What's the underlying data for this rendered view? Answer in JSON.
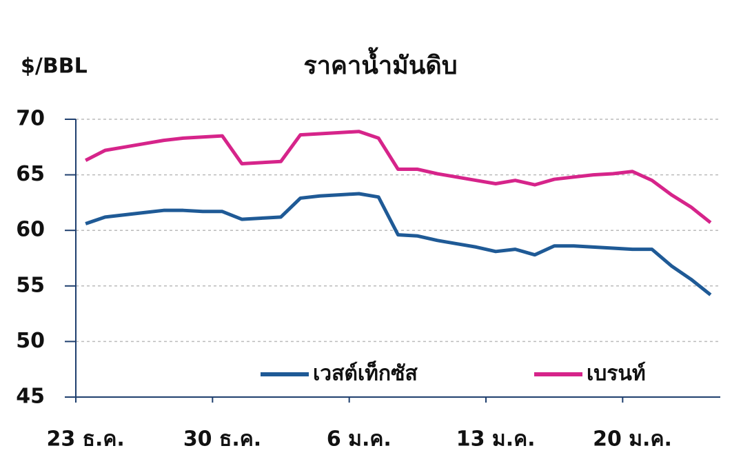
{
  "chart_data": {
    "type": "line",
    "title": "ราคาน้ำมันดิบ",
    "y_label": "$/BBL",
    "categories": [
      "23 ธ.ค.",
      null,
      null,
      null,
      null,
      null,
      null,
      "30 ธ.ค.",
      null,
      null,
      null,
      null,
      null,
      null,
      "6 ม.ค.",
      null,
      null,
      null,
      null,
      null,
      null,
      "13 ม.ค.",
      null,
      null,
      null,
      null,
      null,
      null,
      "20 ม.ค.",
      null,
      null,
      null,
      null
    ],
    "series": [
      {
        "name": "เวสต์เท็กซัส",
        "color": "#1f5a96",
        "values": [
          60.6,
          61.2,
          61.4,
          61.6,
          61.8,
          61.8,
          61.7,
          61.7,
          61.0,
          61.1,
          61.2,
          62.9,
          63.1,
          63.2,
          63.3,
          63.0,
          59.6,
          59.5,
          59.1,
          58.8,
          58.5,
          58.1,
          58.3,
          57.8,
          58.6,
          58.6,
          58.5,
          58.4,
          58.3,
          58.3,
          56.8,
          55.6,
          54.2
        ]
      },
      {
        "name": "เบรนท์",
        "color": "#d6248a",
        "values": [
          66.3,
          67.2,
          67.5,
          67.8,
          68.1,
          68.3,
          68.4,
          68.5,
          66.0,
          66.1,
          66.2,
          68.6,
          68.7,
          68.8,
          68.9,
          68.3,
          65.5,
          65.5,
          65.1,
          64.8,
          64.5,
          64.2,
          64.5,
          64.1,
          64.6,
          64.8,
          65.0,
          65.1,
          65.3,
          64.5,
          63.2,
          62.1,
          60.7
        ]
      }
    ],
    "ylim": [
      45,
      70
    ],
    "yticks": [
      45,
      50,
      55,
      60,
      65,
      70
    ],
    "grid": true
  }
}
